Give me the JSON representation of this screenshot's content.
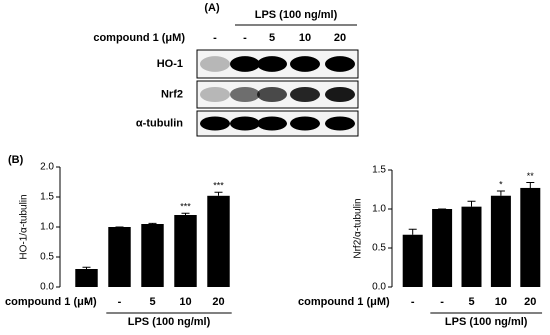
{
  "panel_a": {
    "label": "(A)",
    "group_label": "LPS (100 ng/ml)",
    "row_label": "compound 1 (μM)",
    "lanes": [
      "-",
      "-",
      "5",
      "10",
      "20"
    ],
    "blots": [
      "HO-1",
      "Nrf2",
      "α-tubulin"
    ]
  },
  "panel_b_label": "(B)",
  "chart_data": [
    {
      "type": "bar",
      "y_label": "HO-1/α-tubulin",
      "row_label": "compound 1 (μM)",
      "group_label": "LPS (100 ng/ml)",
      "categories": [
        "-",
        "-",
        "5",
        "10",
        "20"
      ],
      "values": [
        0.3,
        1.0,
        1.05,
        1.2,
        1.52
      ],
      "errors": [
        0.03,
        0,
        0.01,
        0.03,
        0.06
      ],
      "significance": [
        null,
        null,
        null,
        "***",
        "***"
      ],
      "color": "#000000",
      "ylim": [
        0,
        2
      ],
      "yticks": [
        {
          "value": 0,
          "label": "0.0"
        },
        0.5,
        {
          "value": 1,
          "label": "1.0"
        },
        1.5,
        {
          "value": 2,
          "label": "2.0"
        }
      ]
    },
    {
      "type": "bar",
      "y_label": "Nrf2/α-tubulin",
      "row_label": "compound 1 (μM)",
      "group_label": "LPS (100 ng/ml)",
      "categories": [
        "-",
        "-",
        "5",
        "10",
        "20"
      ],
      "values": [
        0.67,
        1.0,
        1.03,
        1.17,
        1.27
      ],
      "errors": [
        0.07,
        0,
        0.07,
        0.06,
        0.07
      ],
      "significance": [
        null,
        null,
        null,
        "*",
        "**"
      ],
      "color": "#000000",
      "ylim": [
        0,
        1.5
      ],
      "yticks": [
        {
          "value": 0,
          "label": "0.0"
        },
        0.5,
        {
          "value": 1,
          "label": "1.0"
        },
        1.5
      ]
    }
  ]
}
